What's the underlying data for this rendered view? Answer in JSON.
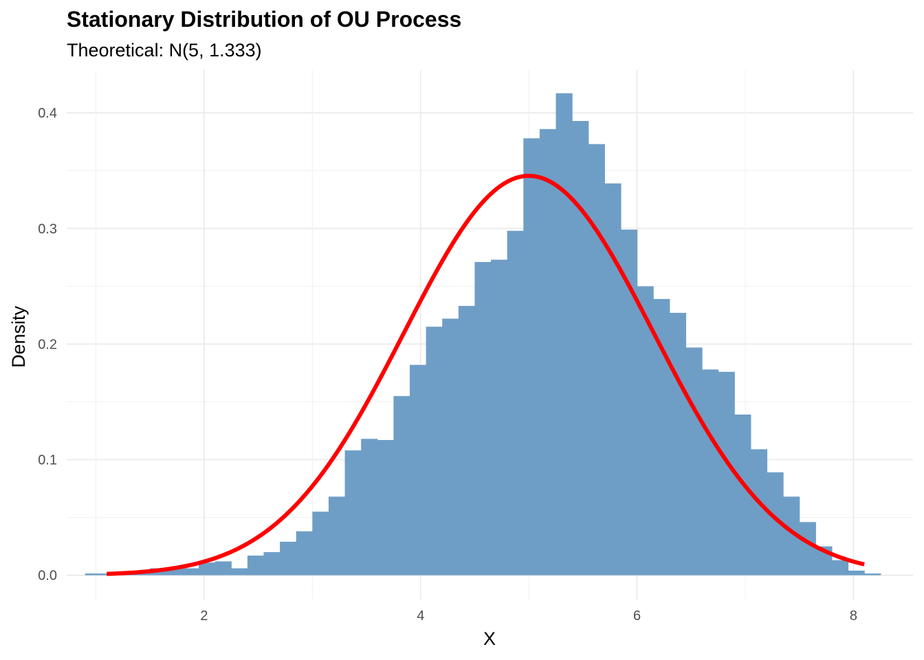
{
  "chart_data": {
    "type": "bar",
    "title": "Stationary Distribution of OU Process",
    "subtitle": "Theoretical: N(5, 1.333)",
    "xlabel": "X",
    "ylabel": "Density",
    "xlim": [
      0.73,
      8.55
    ],
    "ylim": [
      -0.021,
      0.437
    ],
    "x_ticks": [
      2,
      4,
      6,
      8
    ],
    "x_tick_labels": [
      "2",
      "4",
      "6",
      "8"
    ],
    "y_ticks": [
      0.0,
      0.1,
      0.2,
      0.3,
      0.4
    ],
    "y_tick_labels": [
      "0.0",
      "0.1",
      "0.2",
      "0.3",
      "0.4"
    ],
    "grid": true,
    "histogram": {
      "bin_width": 0.15,
      "bin_start": 0.9,
      "densities": [
        0.0015,
        0.0015,
        0.0015,
        0.003,
        0.006,
        0.006,
        0.006,
        0.011,
        0.012,
        0.006,
        0.017,
        0.02,
        0.029,
        0.038,
        0.055,
        0.068,
        0.108,
        0.118,
        0.117,
        0.155,
        0.182,
        0.215,
        0.222,
        0.233,
        0.271,
        0.273,
        0.298,
        0.378,
        0.386,
        0.417,
        0.393,
        0.373,
        0.339,
        0.299,
        0.25,
        0.239,
        0.227,
        0.197,
        0.178,
        0.176,
        0.139,
        0.109,
        0.089,
        0.068,
        0.046,
        0.025,
        0.013,
        0.004,
        0.0015
      ],
      "color": "#6e9ec6"
    },
    "curve": {
      "type": "normal_density",
      "mean": 5,
      "variance": 1.333,
      "x_range": [
        1.1,
        8.1
      ],
      "color": "#ff0000"
    }
  }
}
